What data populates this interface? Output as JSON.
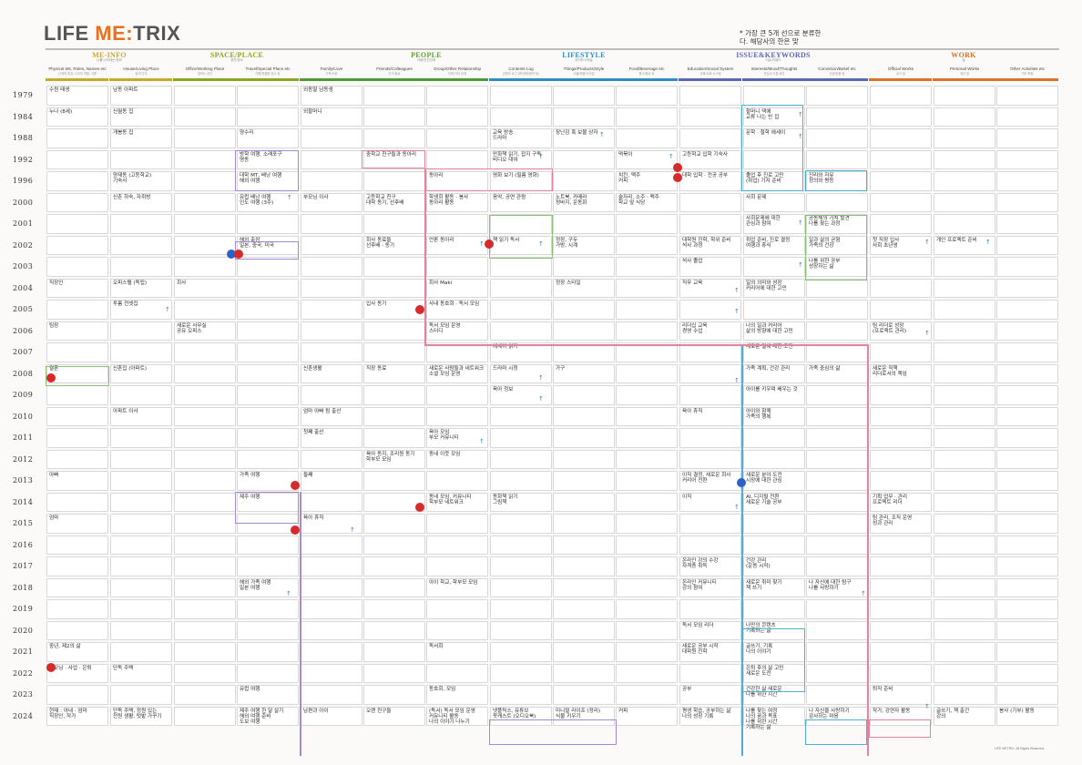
{
  "logo": {
    "life": "LIFE",
    "me": "ME",
    "colon": ":",
    "trix": "TRIX"
  },
  "note": "* 가장 큰 5개 선으로 분류한\n다. 해당사의 한은 맞",
  "categories": [
    {
      "label": "ME-INFO",
      "sub": "나를 나타내는 정보",
      "color": "#c9a82f"
    },
    {
      "label": "SPACE/PLACE",
      "sub": "공간/장소",
      "color": "#8aa81d"
    },
    {
      "label": "PEOPLE",
      "sub": "사람/인간관계",
      "color": "#5da334"
    },
    {
      "label": "LIFESTYLE",
      "sub": "라이프스타일",
      "color": "#2f8dc4"
    },
    {
      "label": "ISSUE&KEYWORDS",
      "sub": "이슈/키워드",
      "color": "#5968b5"
    },
    {
      "label": "WORK",
      "sub": "일",
      "color": "#d7752a"
    }
  ],
  "columns": [
    {
      "head": "Physical Ms, Roles, Names etc",
      "sub": "신체적 특징, 나이와 역할, 이름"
    },
    {
      "head": "House/Living Place",
      "sub": "집/거주지"
    },
    {
      "head": "Office/Working Place",
      "sub": "일하는 공간"
    },
    {
      "head": "Travel/Special Place etc",
      "sub": "여행/특별한 장소 등"
    },
    {
      "head": "Family/Love",
      "sub": "가족/사랑"
    },
    {
      "head": "Friends/Colleagues",
      "sub": "친구/동료"
    },
    {
      "head": "Group/Other Relationship",
      "sub": "단체/기타 관계"
    },
    {
      "head": "Contents Log",
      "sub": "콘텐츠 로그 (책/영화/음악 등)"
    },
    {
      "head": "Things/Products/Style",
      "sub": "사물/제품/스타일"
    },
    {
      "head": "Food/Beverage etc",
      "sub": "음식/음료 등"
    },
    {
      "head": "Education/Social System",
      "sub": "교육/사회 시스템"
    },
    {
      "head": "Interests/Mood/Thoughts",
      "sub": "관심사/기분/생각"
    },
    {
      "head": "Conviction/Belief etc",
      "sub": "신념/믿음 등"
    },
    {
      "head": "Official Works",
      "sub": "공식 일"
    },
    {
      "head": "Personal Works",
      "sub": "개인 일"
    },
    {
      "head": "Other Activities etc",
      "sub": "기타 활동"
    }
  ],
  "col_colors": [
    "#c9a82f",
    "#c9a82f",
    "#8aa81d",
    "#8aa81d",
    "#4d9a3a",
    "#4d9a3a",
    "#4d9a3a",
    "#2f8dc4",
    "#2f8dc4",
    "#2f8dc4",
    "#5968b5",
    "#5968b5",
    "#5968b5",
    "#d7752a",
    "#d7752a",
    "#d7752a"
  ],
  "years": [
    "1979",
    "1984",
    "1988",
    "1992",
    "1996",
    "2000",
    "2001",
    "2002",
    "2003",
    "2004",
    "2005",
    "2006",
    "2007",
    "2008",
    "2009",
    "2010",
    "2011",
    "2012",
    "2013",
    "2014",
    "2015",
    "2016",
    "2017",
    "2018",
    "2019",
    "2020",
    "2021",
    "2022",
    "2023",
    "2024"
  ],
  "entries": [
    {
      "r": 0,
      "c": 0,
      "t": "수원 태생"
    },
    {
      "r": 0,
      "c": 1,
      "t": "남동 아파트"
    },
    {
      "r": 0,
      "c": 4,
      "t": "외동딸 남동생"
    },
    {
      "r": 1,
      "c": 0,
      "t": "누나 (8세)"
    },
    {
      "r": 1,
      "c": 1,
      "t": "신월동 집"
    },
    {
      "r": 1,
      "c": 4,
      "t": "외할머니"
    },
    {
      "r": 1,
      "c": 11,
      "t": "할머니 댁에\n교류 나는 빈 집"
    },
    {
      "r": 2,
      "c": 1,
      "t": "개봉동 집"
    },
    {
      "r": 2,
      "c": 3,
      "t": "양수리"
    },
    {
      "r": 2,
      "c": 7,
      "t": "교육 방송\n드라마"
    },
    {
      "r": 2,
      "c": 8,
      "t": "장난감 혹 보물 상자"
    },
    {
      "r": 2,
      "c": 11,
      "t": "문학 · 철학 에세이"
    },
    {
      "r": 3,
      "c": 3,
      "t": "방학 여행, 소래포구\n명동"
    },
    {
      "r": 3,
      "c": 5,
      "t": "중학교 친구들과 동아리"
    },
    {
      "r": 3,
      "c": 7,
      "t": "만화책 읽기, 잡지 구독\n비디오 대여"
    },
    {
      "r": 3,
      "c": 9,
      "t": "떡볶이"
    },
    {
      "r": 3,
      "c": 10,
      "t": "고등학교 입학 기숙사"
    },
    {
      "r": 4,
      "c": 1,
      "t": "양재동 (고등학교)\n기숙사"
    },
    {
      "r": 4,
      "c": 3,
      "t": "대학 MT, 배낭 여행\n해외 여행"
    },
    {
      "r": 4,
      "c": 6,
      "t": "동아리"
    },
    {
      "r": 4,
      "c": 7,
      "t": "영화 보기 (필름 영화)"
    },
    {
      "r": 4,
      "c": 9,
      "t": "치킨, 맥주\n커피"
    },
    {
      "r": 4,
      "c": 10,
      "t": "대학 입학 · 전공 공부"
    },
    {
      "r": 4,
      "c": 11,
      "t": "졸업 후 진로 고민\n(취업) 기자 준비"
    },
    {
      "r": 4,
      "c": 12,
      "t": "진리와 자유\n정의와 평등"
    },
    {
      "r": 5,
      "c": 1,
      "t": "신촌 하숙, 자취방"
    },
    {
      "r": 5,
      "c": 3,
      "t": "유럽 배낭 여행\n인도 여행 (3주)"
    },
    {
      "r": 5,
      "c": 4,
      "t": "부모님 이사"
    },
    {
      "r": 5,
      "c": 5,
      "t": "고등학교 친구\n대학 동기, 선후배"
    },
    {
      "r": 5,
      "c": 6,
      "t": "학생회 활동 · 봉사\n동아리 활동"
    },
    {
      "r": 5,
      "c": 7,
      "t": "음악, 공연 관람"
    },
    {
      "r": 5,
      "c": 8,
      "t": "노트북, 카메라\n청바지, 운동화"
    },
    {
      "r": 5,
      "c": 9,
      "t": "술자리, 소주 · 맥주\n학교 앞 식당"
    },
    {
      "r": 5,
      "c": 11,
      "t": "사회 문제"
    },
    {
      "r": 6,
      "c": 11,
      "t": "사회문제에 대한\n관심과 참여"
    },
    {
      "r": 6,
      "c": 12,
      "t": "공동체의 가치 발견\n나를 찾는 과정"
    },
    {
      "r": 7,
      "c": 3,
      "t": "해외 출장\n일본, 중국, 미국"
    },
    {
      "r": 7,
      "c": 5,
      "t": "회사 동료들\n선후배 · 동기"
    },
    {
      "r": 7,
      "c": 6,
      "t": "언론 동아리"
    },
    {
      "r": 7,
      "c": 7,
      "t": "책 읽기 독서"
    },
    {
      "r": 7,
      "c": 8,
      "t": "정장, 구두\n가방, 시계"
    },
    {
      "r": 7,
      "c": 10,
      "t": "대학원 진학, 학위 준비\n석사 과정"
    },
    {
      "r": 7,
      "c": 11,
      "t": "취업 준비, 진로 결정\n여행과 휴식"
    },
    {
      "r": 7,
      "c": 12,
      "t": "일과 삶의 균형\n가족의 건강"
    },
    {
      "r": 7,
      "c": 13,
      "t": "첫 직장 입사\n사회 초년생"
    },
    {
      "r": 7,
      "c": 14,
      "t": "개인 프로젝트 준비"
    },
    {
      "r": 8,
      "c": 10,
      "t": "석사 졸업"
    },
    {
      "r": 8,
      "c": 12,
      "t": "나를 위한 공부\n성장하는 삶"
    },
    {
      "r": 9,
      "c": 0,
      "t": "직장인"
    },
    {
      "r": 9,
      "c": 1,
      "t": "오피스텔 (독립)"
    },
    {
      "r": 9,
      "c": 2,
      "t": "회사"
    },
    {
      "r": 9,
      "c": 6,
      "t": "회사 Maki"
    },
    {
      "r": 9,
      "c": 8,
      "t": "정장 스타일"
    },
    {
      "r": 9,
      "c": 10,
      "t": "직무 교육"
    },
    {
      "r": 9,
      "c": 11,
      "t": "일의 의미와 성장\n커리어에 대한 고민"
    },
    {
      "r": 10,
      "c": 1,
      "t": "투룸 전셋집"
    },
    {
      "r": 10,
      "c": 5,
      "t": "입사 동기"
    },
    {
      "r": 10,
      "c": 6,
      "t": "사내 동호회 · 독서 모임"
    },
    {
      "r": 11,
      "c": 0,
      "t": "팀장"
    },
    {
      "r": 11,
      "c": 2,
      "t": "새로운 사무실\n공유 오피스"
    },
    {
      "r": 11,
      "c": 6,
      "t": "독서 모임 운영\n스터디"
    },
    {
      "r": 11,
      "c": 10,
      "t": "리더십 교육\n경영 수업"
    },
    {
      "r": 11,
      "c": 11,
      "t": "나의 일과 커리어\n삶의 방향에 대한 고민"
    },
    {
      "r": 11,
      "c": 13,
      "t": "팀 리더로 성장\n(프로젝트 관리)"
    },
    {
      "r": 12,
      "c": 7,
      "t": "에세이 읽기"
    },
    {
      "r": 12,
      "c": 11,
      "t": "새로운 일에 대한 도전"
    },
    {
      "r": 13,
      "c": 0,
      "t": "결혼"
    },
    {
      "r": 13,
      "c": 1,
      "t": "신혼집 (아파트)"
    },
    {
      "r": 13,
      "c": 4,
      "t": "신혼생활"
    },
    {
      "r": 13,
      "c": 5,
      "t": "직장 동료"
    },
    {
      "r": 13,
      "c": 6,
      "t": "새로운 사람들과 네트워크\n소셜 모임 운영"
    },
    {
      "r": 13,
      "c": 7,
      "t": "드라마 시청"
    },
    {
      "r": 13,
      "c": 8,
      "t": "가구"
    },
    {
      "r": 13,
      "c": 11,
      "t": "가족 계획, 건강 관리"
    },
    {
      "r": 13,
      "c": 12,
      "t": "가족 중심의 삶"
    },
    {
      "r": 13,
      "c": 13,
      "t": "새로운 직책\n리더로서의 책임"
    },
    {
      "r": 14,
      "c": 7,
      "t": "육아 정보"
    },
    {
      "r": 14,
      "c": 11,
      "t": "아이를 키우며 배우는 것"
    },
    {
      "r": 15,
      "c": 1,
      "t": "아파트 이사"
    },
    {
      "r": 15,
      "c": 4,
      "t": "엄마 아빠 됨 출산"
    },
    {
      "r": 15,
      "c": 10,
      "t": "육아 휴직"
    },
    {
      "r": 15,
      "c": 11,
      "t": "아이와 함께\n가족의 행복"
    },
    {
      "r": 16,
      "c": 4,
      "t": "첫째 출산"
    },
    {
      "r": 16,
      "c": 6,
      "t": "육아 모임\n부모 커뮤니티"
    },
    {
      "r": 17,
      "c": 5,
      "t": "육아 동지, 조리원 동기\n학부모 모임"
    },
    {
      "r": 17,
      "c": 6,
      "t": "동네 이웃 모임"
    },
    {
      "r": 18,
      "c": 0,
      "t": "아빠"
    },
    {
      "r": 18,
      "c": 3,
      "t": "가족 여행"
    },
    {
      "r": 18,
      "c": 4,
      "t": "둘째"
    },
    {
      "r": 18,
      "c": 10,
      "t": "이직 결정, 새로운 회사\n커리어 전환"
    },
    {
      "r": 18,
      "c": 11,
      "t": "새로운 분야 도전\n시장에 대한 관심"
    },
    {
      "r": 19,
      "c": 3,
      "t": "제주 여행"
    },
    {
      "r": 19,
      "c": 6,
      "t": "동네 모임, 커뮤니티\n학부모 네트워크"
    },
    {
      "r": 19,
      "c": 7,
      "t": "동화책 읽기\n그림책"
    },
    {
      "r": 19,
      "c": 10,
      "t": "이직"
    },
    {
      "r": 19,
      "c": 11,
      "t": "AI, 디지털 전환\n새로운 기술 공부"
    },
    {
      "r": 19,
      "c": 13,
      "t": "기획 업무 · 관리\n프로젝트 리더"
    },
    {
      "r": 20,
      "c": 0,
      "t": "엄마"
    },
    {
      "r": 20,
      "c": 4,
      "t": "육아 휴직"
    },
    {
      "r": 20,
      "c": 13,
      "t": "팀 관리, 조직 운영\n성과 관리"
    },
    {
      "r": 22,
      "c": 10,
      "t": "온라인 강의 수강\n자격증 취득"
    },
    {
      "r": 22,
      "c": 11,
      "t": "건강 관리\n(운동 시작)"
    },
    {
      "r": 23,
      "c": 3,
      "t": "해외 가족 여행\n일본 여행"
    },
    {
      "r": 23,
      "c": 6,
      "t": "아이 학교, 학부모 모임"
    },
    {
      "r": 23,
      "c": 10,
      "t": "온라인 커뮤니티\n강의 참여"
    },
    {
      "r": 23,
      "c": 11,
      "t": "새로운 취미 찾기\n책 쓰기"
    },
    {
      "r": 23,
      "c": 12,
      "t": "나 자신에 대한 탐구\n나를 사랑하기"
    },
    {
      "r": 25,
      "c": 10,
      "t": "독서 모임 리더"
    },
    {
      "r": 25,
      "c": 11,
      "t": "나만의 콘텐츠\n기록하는 삶"
    },
    {
      "r": 26,
      "c": 0,
      "t": "중년, 제2의 삶"
    },
    {
      "r": 26,
      "c": 6,
      "t": "독서회"
    },
    {
      "r": 26,
      "c": 10,
      "t": "새로운 공부 시작\n대학원 진학"
    },
    {
      "r": 26,
      "c": 11,
      "t": "글쓰기, 기록\n나의 이야기"
    },
    {
      "r": 27,
      "c": 0,
      "t": "부모님 · 사업 · 은퇴"
    },
    {
      "r": 27,
      "c": 1,
      "t": "단독 주택"
    },
    {
      "r": 27,
      "c": 11,
      "t": "은퇴 후의 삶 고민\n새로운 도전"
    },
    {
      "r": 28,
      "c": 3,
      "t": "유럽 여행"
    },
    {
      "r": 28,
      "c": 6,
      "t": "동호회, 모임"
    },
    {
      "r": 28,
      "c": 10,
      "t": "공부"
    },
    {
      "r": 28,
      "c": 11,
      "t": "건강한 삶 새로운\n나를 위한 시간"
    },
    {
      "r": 28,
      "c": 13,
      "t": "퇴직 준비"
    },
    {
      "r": 29,
      "c": 0,
      "t": "현재 : 아내 · 엄마\n직장인, 작가"
    },
    {
      "r": 29,
      "c": 1,
      "t": "단독 주택, 정원 있는\n전원 생활, 텃밭 가꾸기"
    },
    {
      "r": 29,
      "c": 3,
      "t": "제주 여행 한 달 살기\n해외 여행 준비\n도보 여행"
    },
    {
      "r": 29,
      "c": 4,
      "t": "남편과 아이"
    },
    {
      "r": 29,
      "c": 5,
      "t": "오랜 친구들"
    },
    {
      "r": 29,
      "c": 6,
      "t": "(독서) 독서 모임 운영\n커뮤니티 활동\n나의 이야기 나누기"
    },
    {
      "r": 29,
      "c": 7,
      "t": "넷플릭스, 유튜브\n팟캐스트 (오디오북)"
    },
    {
      "r": 29,
      "c": 8,
      "t": "미니멀 라이프 (정리)\n식물 키우기"
    },
    {
      "r": 29,
      "c": 9,
      "t": "커피"
    },
    {
      "r": 29,
      "c": 10,
      "t": "평생 학습, 공부하는 삶\n나의 성장 기록"
    },
    {
      "r": 29,
      "c": 11,
      "t": "나를 찾는 여정\n나의 꿈과 목표\n나를 위한 시간\n기록하는 삶"
    },
    {
      "r": 29,
      "c": 12,
      "t": "나 자신을 사랑하기\n감사하는 마음"
    },
    {
      "r": 29,
      "c": 13,
      "t": "작가, 강연자 활동"
    },
    {
      "r": 29,
      "c": 14,
      "t": "글쓰기, 책 출간\n강의"
    },
    {
      "r": 29,
      "c": 15,
      "t": "봉사 (기부) 활동"
    }
  ],
  "footer": "LIFE METRIX. All Rights Reserved."
}
